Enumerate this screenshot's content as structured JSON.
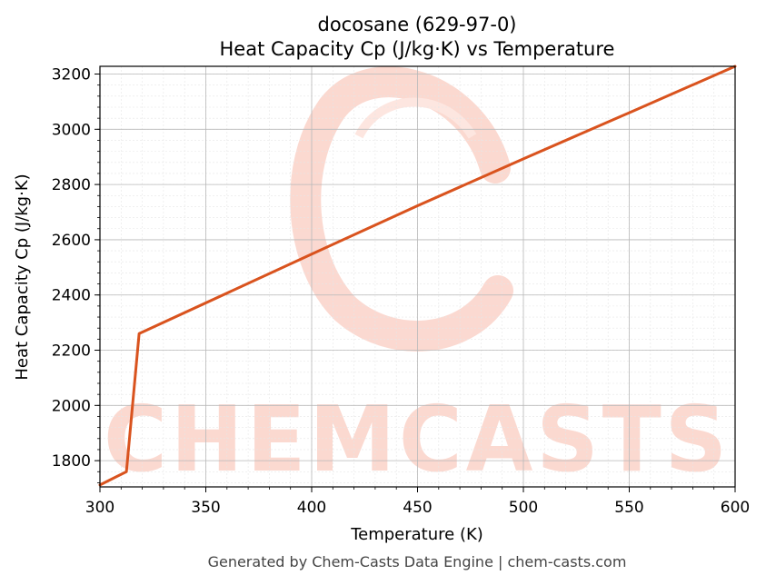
{
  "chart_data": {
    "type": "line",
    "title": "docosane (629-97-0)",
    "subtitle": "Heat Capacity Cp (J/kg·K) vs Temperature",
    "xlabel": "Temperature (K)",
    "ylabel": "Heat Capacity Cp (J/kg·K)",
    "xlim": [
      300,
      600
    ],
    "ylim": [
      1705,
      3228
    ],
    "x_ticks": [
      300,
      350,
      400,
      450,
      500,
      550,
      600
    ],
    "y_ticks": [
      1800,
      2000,
      2200,
      2400,
      2600,
      2800,
      3000,
      3200
    ],
    "grid": true,
    "series": [
      {
        "color": "#d9531e",
        "x": [
          300,
          312.5,
          318.5,
          400,
          450,
          500,
          550,
          600
        ],
        "y": [
          1712,
          1760,
          2260,
          2548,
          2723,
          2893,
          3060,
          3228
        ]
      }
    ]
  },
  "watermark": {
    "text": "CHEMCASTS",
    "color": "#fbd5cc"
  },
  "footer": "Generated by Chem-Casts Data Engine | chem-casts.com"
}
